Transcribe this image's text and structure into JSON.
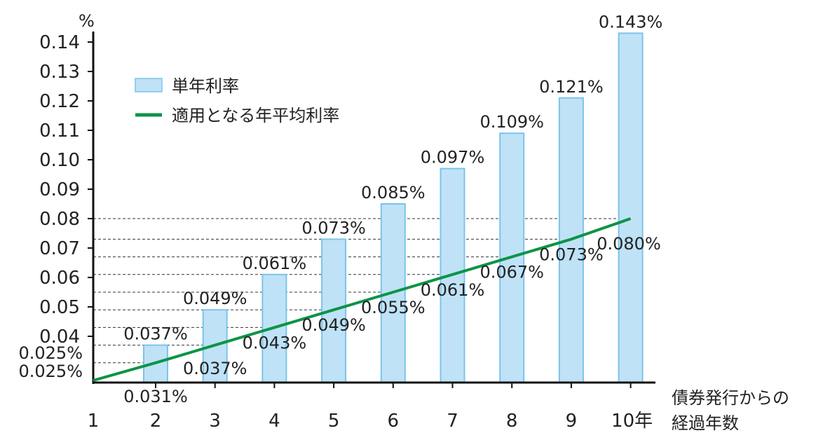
{
  "chart_data": {
    "type": "bar",
    "ylabel": "%",
    "xlabel": [
      "債券発行からの",
      "経過年数"
    ],
    "categories": [
      "1",
      "2",
      "3",
      "4",
      "5",
      "6",
      "7",
      "8",
      "9",
      "10年"
    ],
    "ylim": [
      0.025,
      0.145
    ],
    "yticks": [
      "0.14",
      "0.13",
      "0.12",
      "0.11",
      "0.10",
      "0.09",
      "0.08",
      "0.07",
      "0.06",
      "0.05",
      "0.04"
    ],
    "ytick_values": [
      0.14,
      0.13,
      0.12,
      0.11,
      0.1,
      0.09,
      0.08,
      0.07,
      0.06,
      0.05,
      0.04
    ],
    "series": [
      {
        "name": "単年利率",
        "type": "bar",
        "color": "#bfe2f7",
        "values": [
          0.025,
          0.037,
          0.049,
          0.061,
          0.073,
          0.085,
          0.097,
          0.109,
          0.121,
          0.143
        ],
        "labels": [
          "0.025%",
          "0.037%",
          "0.049%",
          "0.061%",
          "0.073%",
          "0.085%",
          "0.097%",
          "0.109%",
          "0.121%",
          "0.143%"
        ]
      },
      {
        "name": "適用となる年平均利率",
        "type": "line",
        "color": "#0d9447",
        "values": [
          0.025,
          0.031,
          0.037,
          0.043,
          0.049,
          0.055,
          0.061,
          0.067,
          0.073,
          0.08
        ],
        "labels": [
          "0.025%",
          "0.031%",
          "0.037%",
          "0.043%",
          "0.049%",
          "0.055%",
          "0.061%",
          "0.067%",
          "0.073%",
          "0.080%"
        ]
      }
    ],
    "legend": "top-left",
    "grid": false
  }
}
